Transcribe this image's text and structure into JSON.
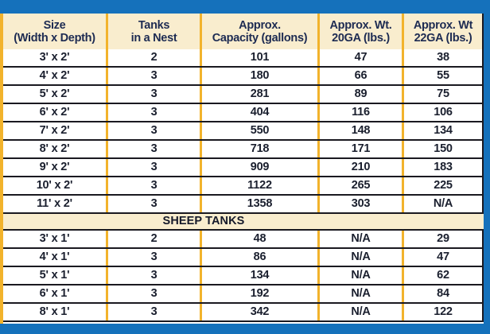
{
  "table": {
    "columns": [
      {
        "line1": "Size",
        "line2": "(Width x Depth)"
      },
      {
        "line1": "Tanks",
        "line2": "in a Nest"
      },
      {
        "line1": "Approx.",
        "line2": "Capacity (gallons)"
      },
      {
        "line1": "Approx. Wt.",
        "line2": "20GA (lbs.)"
      },
      {
        "line1": "Approx. Wt",
        "line2": "22GA (lbs.)"
      }
    ],
    "cattle_rows": [
      [
        "3' x 2'",
        "2",
        "101",
        "47",
        "38"
      ],
      [
        "4' x 2'",
        "3",
        "180",
        "66",
        "55"
      ],
      [
        "5' x 2'",
        "3",
        "281",
        "89",
        "75"
      ],
      [
        "6' x 2'",
        "3",
        "404",
        "116",
        "106"
      ],
      [
        "7' x 2'",
        "3",
        "550",
        "148",
        "134"
      ],
      [
        "8' x 2'",
        "3",
        "718",
        "171",
        "150"
      ],
      [
        "9' x 2'",
        "3",
        "909",
        "210",
        "183"
      ],
      [
        "10' x 2'",
        "3",
        "1122",
        "265",
        "225"
      ],
      [
        "11' x 2'",
        "3",
        "1358",
        "303",
        "N/A"
      ]
    ],
    "section_label": "SHEEP TANKS",
    "sheep_rows": [
      [
        "3' x 1'",
        "2",
        "48",
        "N/A",
        "29"
      ],
      [
        "4' x 1'",
        "3",
        "86",
        "N/A",
        "47"
      ],
      [
        "5' x 1'",
        "3",
        "134",
        "N/A",
        "62"
      ],
      [
        "6' x 1'",
        "3",
        "192",
        "N/A",
        "84"
      ],
      [
        "8' x 1'",
        "3",
        "342",
        "N/A",
        "122"
      ]
    ]
  },
  "colors": {
    "frame_blue": "#1571BB",
    "header_cream": "#F9EDCE",
    "gold_separator": "#F2B32C",
    "row_rule_dark": "#1A1920",
    "header_text_navy": "#1D2B52",
    "cell_text_dark": "#1A1F2E"
  }
}
